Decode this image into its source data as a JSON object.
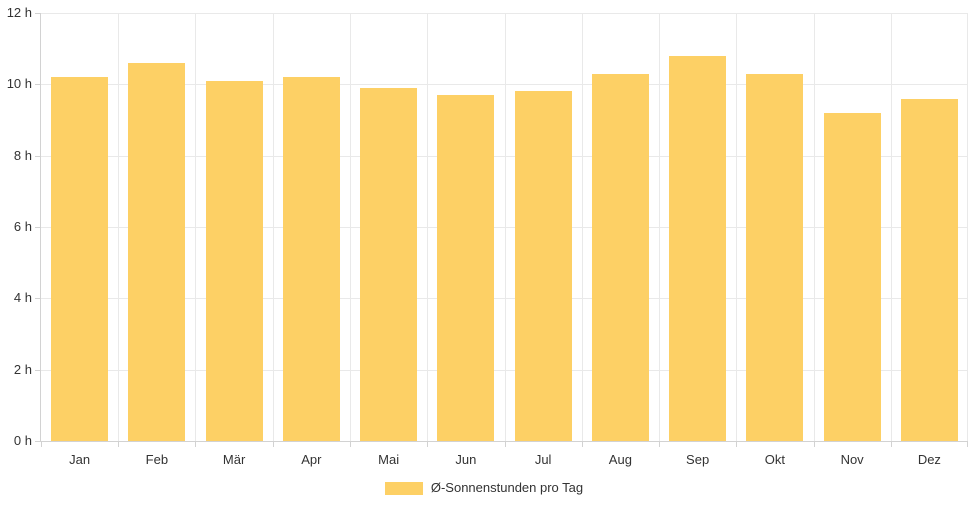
{
  "chart_data": {
    "type": "bar",
    "title": "",
    "xlabel": "",
    "ylabel": "",
    "categories": [
      "Jan",
      "Feb",
      "Mär",
      "Apr",
      "Mai",
      "Jun",
      "Jul",
      "Aug",
      "Sep",
      "Okt",
      "Nov",
      "Dez"
    ],
    "values": [
      10.2,
      10.6,
      10.1,
      10.2,
      9.9,
      9.7,
      9.8,
      10.3,
      10.8,
      10.3,
      9.2,
      9.6
    ],
    "series_name": "Ø-Sonnenstunden pro Tag",
    "unit": "h",
    "ylim": [
      0,
      12
    ],
    "ytick_step": 2,
    "ytick_labels": [
      "0 h",
      "2 h",
      "4 h",
      "6 h",
      "8 h",
      "10 h",
      "12 h"
    ],
    "grid": true,
    "legend_position": "bottom",
    "colors": {
      "bar": "#FDD065",
      "grid": "#E9E9E9",
      "axis": "#D2D2D2",
      "text": "#333333",
      "background": "#FFFFFF"
    }
  }
}
